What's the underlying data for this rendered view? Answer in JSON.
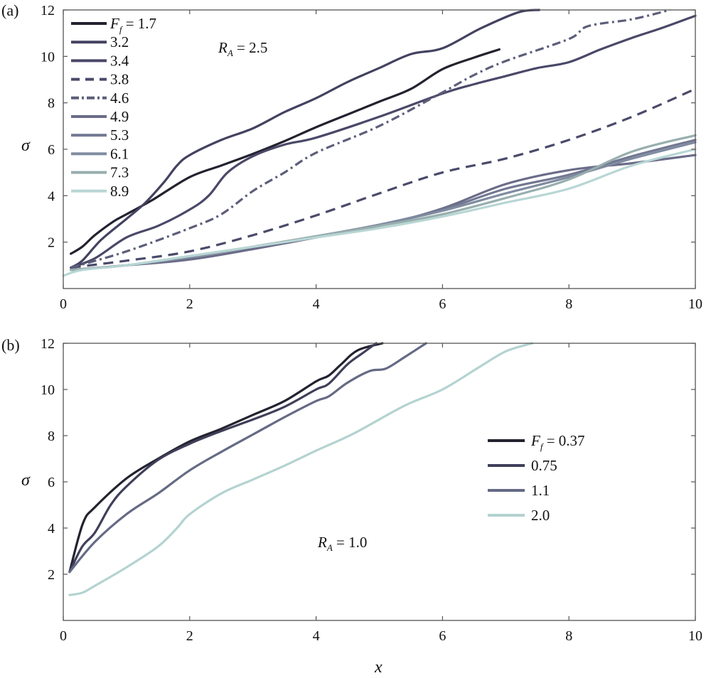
{
  "chart_data": [
    {
      "type": "line",
      "panel_label": "(a)",
      "xlabel": "",
      "ylabel": "σ",
      "xlim": [
        0,
        10
      ],
      "ylim": [
        0,
        12
      ],
      "xticks": [
        "0",
        "2",
        "4",
        "6",
        "8",
        "10"
      ],
      "yticks": [
        "2",
        "4",
        "6",
        "8",
        "10",
        "12"
      ],
      "legend_title": {
        "symbol": "F",
        "sub": "f",
        "eq": " = "
      },
      "legend_position": "top-left",
      "annotation": {
        "symbol": "R",
        "sub": "A",
        "text": " = 2.5"
      },
      "series": [
        {
          "name": "1.7",
          "color": "#23222f",
          "dash": "",
          "points": [
            [
              0.12,
              1.5
            ],
            [
              0.3,
              1.8
            ],
            [
              0.5,
              2.3
            ],
            [
              0.8,
              2.9
            ],
            [
              1.0,
              3.2
            ],
            [
              1.4,
              3.8
            ],
            [
              2.0,
              4.8
            ],
            [
              2.5,
              5.3
            ],
            [
              3.0,
              5.8
            ],
            [
              3.5,
              6.35
            ],
            [
              4.0,
              6.95
            ],
            [
              4.5,
              7.5
            ],
            [
              5.0,
              8.05
            ],
            [
              5.5,
              8.6
            ],
            [
              6.0,
              9.45
            ],
            [
              6.5,
              9.95
            ],
            [
              6.9,
              10.3
            ]
          ]
        },
        {
          "name": "3.2",
          "color": "#434260",
          "dash": "",
          "points": [
            [
              0.12,
              0.9
            ],
            [
              0.3,
              1.2
            ],
            [
              0.6,
              2.1
            ],
            [
              1.0,
              3.0
            ],
            [
              1.3,
              3.7
            ],
            [
              1.6,
              4.6
            ],
            [
              1.8,
              5.3
            ],
            [
              2.0,
              5.75
            ],
            [
              2.5,
              6.4
            ],
            [
              3.0,
              6.9
            ],
            [
              3.5,
              7.6
            ],
            [
              4.0,
              8.2
            ],
            [
              4.5,
              8.9
            ],
            [
              5.0,
              9.5
            ],
            [
              5.5,
              10.1
            ],
            [
              6.0,
              10.35
            ],
            [
              6.6,
              11.2
            ],
            [
              7.2,
              11.9
            ],
            [
              7.53,
              12.0
            ]
          ]
        },
        {
          "name": "3.4",
          "color": "#4a4868",
          "dash": "",
          "points": [
            [
              0.12,
              0.9
            ],
            [
              0.5,
              1.3
            ],
            [
              1.0,
              2.2
            ],
            [
              1.5,
              2.7
            ],
            [
              2.0,
              3.4
            ],
            [
              2.3,
              4.0
            ],
            [
              2.6,
              5.0
            ],
            [
              3.0,
              5.7
            ],
            [
              3.5,
              6.2
            ],
            [
              4.0,
              6.5
            ],
            [
              5.0,
              7.4
            ],
            [
              6.0,
              8.4
            ],
            [
              6.5,
              8.8
            ],
            [
              7.0,
              9.15
            ],
            [
              7.5,
              9.5
            ],
            [
              8.0,
              9.75
            ],
            [
              8.5,
              10.3
            ],
            [
              9.0,
              10.8
            ],
            [
              9.5,
              11.25
            ],
            [
              10.0,
              11.75
            ]
          ]
        },
        {
          "name": "3.8",
          "color": "#4a4a6a",
          "dash": "14 9",
          "points": [
            [
              0.12,
              0.9
            ],
            [
              1.0,
              1.2
            ],
            [
              2.0,
              1.6
            ],
            [
              3.0,
              2.3
            ],
            [
              4.0,
              3.15
            ],
            [
              5.0,
              4.1
            ],
            [
              6.0,
              5.0
            ],
            [
              7.0,
              5.6
            ],
            [
              8.0,
              6.4
            ],
            [
              9.0,
              7.4
            ],
            [
              10.0,
              8.6
            ]
          ]
        },
        {
          "name": "4.6",
          "color": "#5c5e7a",
          "dash": "12 5 3 5",
          "points": [
            [
              0.12,
              0.9
            ],
            [
              1.0,
              1.6
            ],
            [
              2.0,
              2.6
            ],
            [
              2.5,
              3.2
            ],
            [
              3.0,
              4.2
            ],
            [
              3.5,
              5.0
            ],
            [
              4.0,
              5.85
            ],
            [
              5.0,
              7.0
            ],
            [
              6.0,
              8.45
            ],
            [
              6.5,
              9.2
            ],
            [
              7.0,
              9.8
            ],
            [
              8.0,
              10.75
            ],
            [
              8.3,
              11.3
            ],
            [
              9.0,
              11.6
            ],
            [
              9.6,
              12.0
            ]
          ]
        },
        {
          "name": "4.9",
          "color": "#6a6c88",
          "dash": "",
          "points": [
            [
              0.12,
              0.8
            ],
            [
              1.0,
              1.0
            ],
            [
              2.0,
              1.25
            ],
            [
              3.0,
              1.7
            ],
            [
              4.0,
              2.2
            ],
            [
              5.0,
              2.7
            ],
            [
              6.0,
              3.45
            ],
            [
              7.0,
              4.5
            ],
            [
              8.0,
              5.1
            ],
            [
              9.0,
              5.4
            ],
            [
              10.0,
              5.75
            ]
          ]
        },
        {
          "name": "5.3",
          "color": "#727892",
          "dash": "",
          "points": [
            [
              0.12,
              0.8
            ],
            [
              1.0,
              1.0
            ],
            [
              2.0,
              1.35
            ],
            [
              3.0,
              1.8
            ],
            [
              4.0,
              2.25
            ],
            [
              5.0,
              2.75
            ],
            [
              6.0,
              3.4
            ],
            [
              7.0,
              4.3
            ],
            [
              8.0,
              4.9
            ],
            [
              9.0,
              5.7
            ],
            [
              10.0,
              6.4
            ]
          ]
        },
        {
          "name": "6.1",
          "color": "#7f8ba0",
          "dash": "",
          "points": [
            [
              0.12,
              0.8
            ],
            [
              1.0,
              1.0
            ],
            [
              2.0,
              1.35
            ],
            [
              3.0,
              1.8
            ],
            [
              4.0,
              2.25
            ],
            [
              5.0,
              2.75
            ],
            [
              6.0,
              3.35
            ],
            [
              7.0,
              4.1
            ],
            [
              8.0,
              4.8
            ],
            [
              9.0,
              5.6
            ],
            [
              10.0,
              6.3
            ]
          ]
        },
        {
          "name": "7.3",
          "color": "#98aeae",
          "dash": "",
          "points": [
            [
              0.12,
              0.8
            ],
            [
              1.0,
              1.0
            ],
            [
              2.0,
              1.4
            ],
            [
              3.0,
              1.8
            ],
            [
              4.0,
              2.25
            ],
            [
              5.0,
              2.7
            ],
            [
              6.0,
              3.2
            ],
            [
              7.0,
              3.9
            ],
            [
              8.0,
              4.7
            ],
            [
              9.0,
              5.9
            ],
            [
              10.0,
              6.6
            ]
          ]
        },
        {
          "name": "8.9",
          "color": "#b8d6d4",
          "dash": "",
          "points": [
            [
              0.0,
              0.55
            ],
            [
              0.3,
              0.8
            ],
            [
              1.0,
              1.0
            ],
            [
              2.0,
              1.4
            ],
            [
              3.0,
              1.8
            ],
            [
              4.0,
              2.2
            ],
            [
              5.0,
              2.6
            ],
            [
              6.0,
              3.1
            ],
            [
              7.0,
              3.7
            ],
            [
              8.0,
              4.3
            ],
            [
              9.0,
              5.3
            ],
            [
              10.0,
              6.0
            ]
          ]
        }
      ]
    },
    {
      "type": "line",
      "panel_label": "(b)",
      "xlabel": "x",
      "ylabel": "σ",
      "xlim": [
        0,
        10
      ],
      "ylim": [
        0,
        12
      ],
      "xticks": [
        "0",
        "2",
        "4",
        "6",
        "8",
        "10"
      ],
      "yticks": [
        "2",
        "4",
        "6",
        "8",
        "10",
        "12"
      ],
      "legend_title": {
        "symbol": "F",
        "sub": "f",
        "eq": " = "
      },
      "legend_position": "center-right",
      "annotation": {
        "symbol": "R",
        "sub": "A",
        "text": " = 1.0"
      },
      "series": [
        {
          "name": "0.37",
          "color": "#23222f",
          "dash": "",
          "points": [
            [
              0.1,
              2.1
            ],
            [
              0.31,
              4.2
            ],
            [
              0.5,
              4.9
            ],
            [
              1.0,
              6.15
            ],
            [
              1.5,
              7.0
            ],
            [
              2.0,
              7.75
            ],
            [
              2.5,
              8.3
            ],
            [
              3.0,
              8.9
            ],
            [
              3.5,
              9.5
            ],
            [
              4.0,
              10.35
            ],
            [
              4.2,
              10.6
            ],
            [
              4.4,
              11.1
            ],
            [
              4.66,
              11.7
            ],
            [
              5.05,
              12.0
            ]
          ]
        },
        {
          "name": "0.75",
          "color": "#3f3f5a",
          "dash": "",
          "points": [
            [
              0.1,
              2.1
            ],
            [
              0.3,
              3.2
            ],
            [
              0.5,
              3.8
            ],
            [
              0.75,
              5.0
            ],
            [
              1.0,
              5.8
            ],
            [
              1.5,
              6.95
            ],
            [
              2.0,
              7.65
            ],
            [
              2.5,
              8.2
            ],
            [
              3.0,
              8.7
            ],
            [
              3.5,
              9.25
            ],
            [
              4.0,
              10.0
            ],
            [
              4.2,
              10.25
            ],
            [
              4.5,
              11.1
            ],
            [
              4.75,
              11.6
            ],
            [
              4.95,
              12.0
            ]
          ]
        },
        {
          "name": "1.1",
          "color": "#656a85",
          "dash": "",
          "points": [
            [
              0.1,
              2.1
            ],
            [
              0.5,
              3.4
            ],
            [
              1.0,
              4.6
            ],
            [
              1.5,
              5.5
            ],
            [
              2.0,
              6.5
            ],
            [
              2.5,
              7.3
            ],
            [
              3.0,
              8.05
            ],
            [
              3.5,
              8.8
            ],
            [
              4.0,
              9.5
            ],
            [
              4.2,
              9.7
            ],
            [
              4.5,
              10.3
            ],
            [
              4.85,
              10.8
            ],
            [
              5.1,
              10.9
            ],
            [
              5.4,
              11.4
            ],
            [
              5.74,
              12.0
            ]
          ]
        },
        {
          "name": "2.0",
          "color": "#b3d3d0",
          "dash": "",
          "points": [
            [
              0.1,
              1.1
            ],
            [
              0.3,
              1.2
            ],
            [
              0.5,
              1.5
            ],
            [
              1.0,
              2.3
            ],
            [
              1.5,
              3.2
            ],
            [
              1.8,
              4.0
            ],
            [
              2.0,
              4.6
            ],
            [
              2.5,
              5.5
            ],
            [
              3.0,
              6.1
            ],
            [
              3.5,
              6.7
            ],
            [
              4.0,
              7.35
            ],
            [
              4.6,
              8.1
            ],
            [
              5.4,
              9.3
            ],
            [
              6.0,
              10.0
            ],
            [
              6.6,
              11.0
            ],
            [
              7.0,
              11.65
            ],
            [
              7.42,
              12.0
            ]
          ]
        }
      ]
    }
  ]
}
